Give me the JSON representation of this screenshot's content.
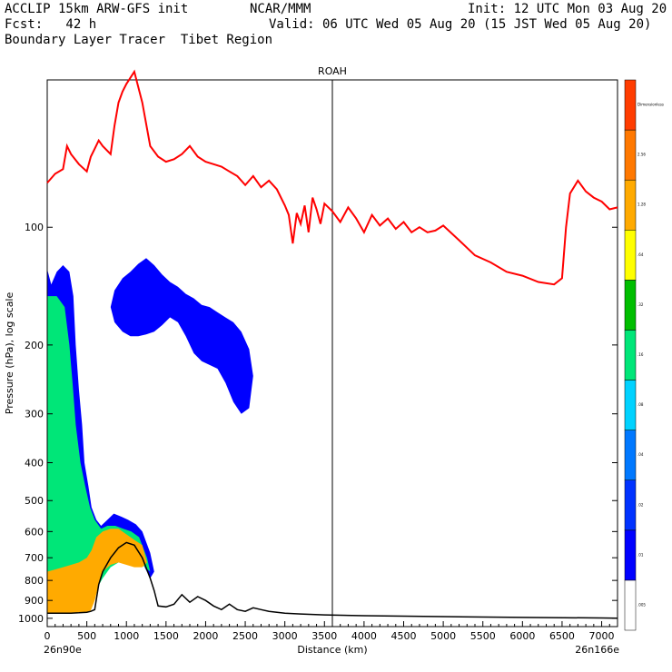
{
  "header": {
    "line1_left": "ACCLIP 15km ARW-GFS init",
    "line1_mid": "NCAR/MMM",
    "line1_right": "Init: 12 UTC Mon 03 Aug 20",
    "line2_left": "Fcst:   42 h",
    "line2_right": "Valid: 06 UTC Wed 05 Aug 20 (15 JST Wed 05 Aug 20)",
    "line3_left": "Boundary Layer Tracer  Tibet Region"
  },
  "chart_data": {
    "type": "heatmap",
    "title": "ROAH",
    "xlabel": "Distance (km)",
    "ylabel": "Pressure (hPa), log scale",
    "x_ticks": [
      0,
      500,
      1000,
      1500,
      2000,
      2500,
      3000,
      3500,
      4000,
      4500,
      5000,
      5500,
      6000,
      6500,
      7000
    ],
    "x_tick_labels": [
      "0",
      "500",
      "1000",
      "1500",
      "2000",
      "2500",
      "3000",
      "3500",
      "4000",
      "4500",
      "5000",
      "5500",
      "6000",
      "6500",
      "7000"
    ],
    "xlim": [
      0,
      7200
    ],
    "y_ticks": [
      100,
      200,
      300,
      400,
      500,
      600,
      700,
      800,
      900,
      1000
    ],
    "y_tick_labels": [
      "100",
      "200",
      "300",
      "400",
      "500",
      "600",
      "700",
      "800",
      "900",
      "1000"
    ],
    "ylim": [
      1050,
      42
    ],
    "y_scale": "log",
    "x_start_label": "26n90e",
    "x_end_label": "26n166e",
    "marker_line_x": 3600,
    "colorbar": {
      "levels": [
        ".005",
        ".01",
        ".02",
        ".04",
        ".08",
        ".16",
        ".32",
        ".64",
        "1.28",
        "2.56",
        "Dimensionless"
      ],
      "colors": [
        "#ffffff",
        "#0000ff",
        "#0032ff",
        "#0078ff",
        "#00d2ff",
        "#00e678",
        "#00be00",
        "#ffff00",
        "#ffaa00",
        "#ff7800",
        "#ff3c00"
      ]
    },
    "tropopause_line": {
      "color": "#ff0000",
      "x": [
        0,
        100,
        200,
        250,
        300,
        400,
        500,
        550,
        600,
        650,
        700,
        800,
        850,
        900,
        950,
        1000,
        1100,
        1200,
        1300,
        1400,
        1500,
        1600,
        1700,
        1800,
        1900,
        2000,
        2100,
        2200,
        2300,
        2400,
        2500,
        2600,
        2700,
        2800,
        2900,
        3000,
        3050,
        3100,
        3150,
        3200,
        3250,
        3300,
        3350,
        3400,
        3450,
        3500,
        3600,
        3700,
        3800,
        3900,
        4000,
        4100,
        4200,
        4300,
        4400,
        4500,
        4600,
        4700,
        4800,
        4900,
        5000,
        5200,
        5400,
        5600,
        5800,
        6000,
        6200,
        6400,
        6500,
        6550,
        6600,
        6700,
        6800,
        6900,
        7000,
        7100,
        7200
      ],
      "y": [
        77,
        73,
        71,
        62,
        65,
        69,
        72,
        66,
        63,
        60,
        62,
        65,
        55,
        48,
        45,
        43,
        40,
        48,
        62,
        66,
        68,
        67,
        65,
        62,
        66,
        68,
        69,
        70,
        72,
        74,
        78,
        74,
        79,
        76,
        80,
        88,
        93,
        110,
        92,
        98,
        88,
        103,
        84,
        90,
        98,
        87,
        91,
        97,
        89,
        95,
        103,
        93,
        99,
        95,
        101,
        97,
        103,
        100,
        103,
        102,
        99,
        108,
        118,
        123,
        130,
        133,
        138,
        140,
        135,
        100,
        82,
        76,
        81,
        84,
        86,
        90,
        89
      ]
    },
    "terrain_line": {
      "color": "#000000",
      "x": [
        0,
        100,
        200,
        300,
        400,
        500,
        550,
        600,
        650,
        700,
        750,
        800,
        900,
        1000,
        1100,
        1200,
        1300,
        1350,
        1400,
        1500,
        1600,
        1700,
        1800,
        1900,
        2000,
        2100,
        2200,
        2300,
        2400,
        2500,
        2600,
        2700,
        2800,
        3000,
        3200,
        3500,
        4000,
        5000,
        6000,
        7000,
        7200
      ],
      "y": [
        970,
        970,
        970,
        970,
        968,
        965,
        960,
        950,
        820,
        760,
        730,
        700,
        660,
        640,
        650,
        700,
        790,
        850,
        930,
        935,
        920,
        870,
        910,
        880,
        900,
        930,
        950,
        920,
        950,
        960,
        940,
        950,
        960,
        970,
        975,
        980,
        985,
        990,
        995,
        998,
        999
      ]
    },
    "tracer_blobs": [
      {
        "name": "lower-plume",
        "x": [
          0,
          50,
          120,
          200,
          280,
          330,
          360,
          400,
          440,
          470,
          520,
          560,
          620,
          680,
          760,
          840,
          940,
          1020,
          1120,
          1200,
          1300,
          1350,
          1300,
          1200,
          1100,
          1000,
          900,
          800,
          700,
          640,
          560,
          500,
          400,
          300,
          200,
          100,
          0
        ],
        "y": [
          128,
          140,
          130,
          125,
          130,
          150,
          200,
          260,
          320,
          400,
          460,
          520,
          560,
          580,
          560,
          540,
          550,
          560,
          575,
          600,
          680,
          760,
          790,
          720,
          700,
          700,
          700,
          720,
          780,
          820,
          900,
          965,
          968,
          968,
          970,
          970,
          970
        ],
        "level": 1
      },
      {
        "name": "lower-plume-core",
        "x": [
          0,
          120,
          220,
          280,
          320,
          360,
          420,
          480,
          540,
          600,
          680,
          760,
          860,
          960,
          1060,
          1160,
          1260,
          1300,
          1200,
          1100,
          1000,
          900,
          800,
          700,
          640,
          580,
          520,
          440,
          360,
          280,
          200,
          100,
          0
        ],
        "y": [
          150,
          150,
          160,
          200,
          250,
          320,
          400,
          460,
          520,
          560,
          590,
          580,
          580,
          590,
          600,
          620,
          700,
          760,
          730,
          710,
          710,
          720,
          740,
          790,
          830,
          880,
          940,
          960,
          960,
          960,
          965,
          965,
          965
        ],
        "level": 5
      },
      {
        "name": "surface-orange",
        "x": [
          0,
          100,
          200,
          300,
          400,
          500,
          560,
          620,
          700,
          800,
          900,
          1000,
          1100,
          1200,
          1260,
          1200,
          1100,
          1000,
          900,
          800,
          700,
          650,
          600,
          550,
          500,
          400,
          300,
          200,
          100,
          0
        ],
        "y": [
          760,
          750,
          740,
          730,
          720,
          700,
          670,
          620,
          600,
          590,
          590,
          610,
          630,
          650,
          720,
          740,
          740,
          730,
          720,
          730,
          760,
          820,
          900,
          955,
          965,
          968,
          968,
          970,
          970,
          970
        ],
        "level": 8
      },
      {
        "name": "upper-blob-left",
        "x": [
          800,
          850,
          950,
          1050,
          1150,
          1250,
          1350,
          1450,
          1550,
          1650,
          1750,
          1850,
          1950,
          2050,
          2150,
          2250,
          2350,
          2450,
          2550,
          2600,
          2550,
          2450,
          2350,
          2250,
          2150,
          2050,
          1950,
          1850,
          1750,
          1650,
          1550,
          1450,
          1350,
          1250,
          1150,
          1050,
          950,
          850,
          800
        ],
        "y": [
          160,
          145,
          135,
          130,
          124,
          120,
          125,
          132,
          138,
          142,
          148,
          152,
          158,
          160,
          165,
          170,
          175,
          185,
          205,
          240,
          290,
          300,
          280,
          250,
          230,
          225,
          220,
          210,
          190,
          175,
          170,
          178,
          185,
          188,
          190,
          190,
          185,
          175,
          160
        ],
        "level": 1
      }
    ]
  }
}
